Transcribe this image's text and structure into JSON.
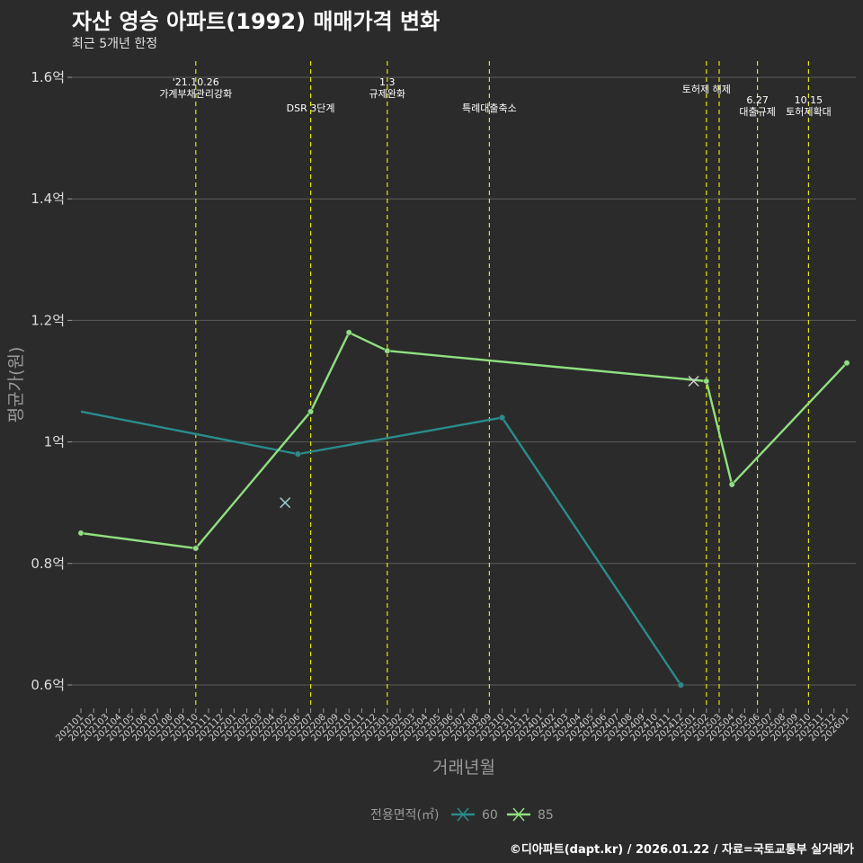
{
  "header": {
    "title": "자산 영승 아파트(1992) 매매가격 변화",
    "subtitle": "최근 5개년 한정"
  },
  "footer": {
    "credit": "©디아파트(dapt.kr) / 2026.01.22 / 자료=국토교통부 실거래가"
  },
  "colors": {
    "background": "#2b2b2b",
    "series_60": "#2a8c8c",
    "series_85": "#90e080",
    "event_line": "#e6e600",
    "grid": "#5c5c5c"
  },
  "chart_data": {
    "type": "line",
    "xlabel": "거래년월",
    "ylabel": "평균가(원)",
    "ylim": [
      0.56,
      1.62
    ],
    "yticks": [
      0.6,
      0.8,
      1.0,
      1.2,
      1.4,
      1.6
    ],
    "ytick_labels": [
      "0.6억",
      "0.8억",
      "1억",
      "1.2억",
      "1.4억",
      "1.6억"
    ],
    "x_categories": [
      "202101",
      "202102",
      "202103",
      "202104",
      "202105",
      "202106",
      "202107",
      "202108",
      "202109",
      "202110",
      "202111",
      "202112",
      "202201",
      "202202",
      "202203",
      "202204",
      "202205",
      "202206",
      "202207",
      "202208",
      "202209",
      "202210",
      "202211",
      "202212",
      "202301",
      "202302",
      "202303",
      "202304",
      "202305",
      "202306",
      "202307",
      "202308",
      "202309",
      "202310",
      "202311",
      "202312",
      "202401",
      "202402",
      "202403",
      "202404",
      "202405",
      "202406",
      "202407",
      "202408",
      "202409",
      "202410",
      "202411",
      "202412",
      "202501",
      "202502",
      "202503",
      "202504",
      "202505",
      "202506",
      "202507",
      "202508",
      "202509",
      "202510",
      "202511",
      "202512",
      "202601"
    ],
    "legend": {
      "title": "전용면적(㎡)",
      "position": "bottom"
    },
    "series": [
      {
        "name": "60",
        "color": "#2a8c8c",
        "line": [
          [
            "202101",
            1.05
          ],
          [
            "202206",
            0.98
          ],
          [
            "202310",
            1.04
          ],
          [
            "202412",
            0.6
          ]
        ],
        "points": [
          [
            "202206",
            0.98
          ],
          [
            "202310",
            1.04
          ],
          [
            "202412",
            0.6
          ]
        ],
        "markers": [
          [
            "202205",
            0.9
          ]
        ]
      },
      {
        "name": "85",
        "color": "#90e080",
        "line": [
          [
            "202101",
            0.85
          ],
          [
            "202110",
            0.825
          ],
          [
            "202207",
            1.05
          ],
          [
            "202210",
            1.18
          ],
          [
            "202301",
            1.15
          ],
          [
            "202502",
            1.1
          ],
          [
            "202504",
            0.93
          ],
          [
            "202601",
            1.13
          ]
        ],
        "points": [
          [
            "202101",
            0.85
          ],
          [
            "202110",
            0.825
          ],
          [
            "202207",
            1.05
          ],
          [
            "202210",
            1.18
          ],
          [
            "202301",
            1.15
          ],
          [
            "202502",
            1.1
          ],
          [
            "202504",
            0.93
          ],
          [
            "202601",
            1.13
          ]
        ],
        "markers": [
          [
            "202501",
            1.1
          ]
        ]
      }
    ],
    "events": [
      {
        "month": "202110",
        "lines": [
          "'21.10.26",
          "가계부채관리강화"
        ],
        "row": 0
      },
      {
        "month": "202207",
        "lines": [
          "DSR 3단계"
        ],
        "row": 2
      },
      {
        "month": "202301",
        "lines": [
          "1.3",
          "규제완화"
        ],
        "row": 0
      },
      {
        "month": "202309",
        "lines": [
          "특례대출축소"
        ],
        "row": 2
      },
      {
        "month": "202502",
        "lines": [
          "토허제 해제"
        ],
        "row": 1
      },
      {
        "month": "202503",
        "lines": [],
        "row": 1
      },
      {
        "month": "202506",
        "lines": [
          "6.27",
          "대출규제"
        ],
        "row": 1.8
      },
      {
        "month": "202510",
        "lines": [
          "10.15",
          "토허제확대"
        ],
        "row": 1.8
      }
    ]
  }
}
